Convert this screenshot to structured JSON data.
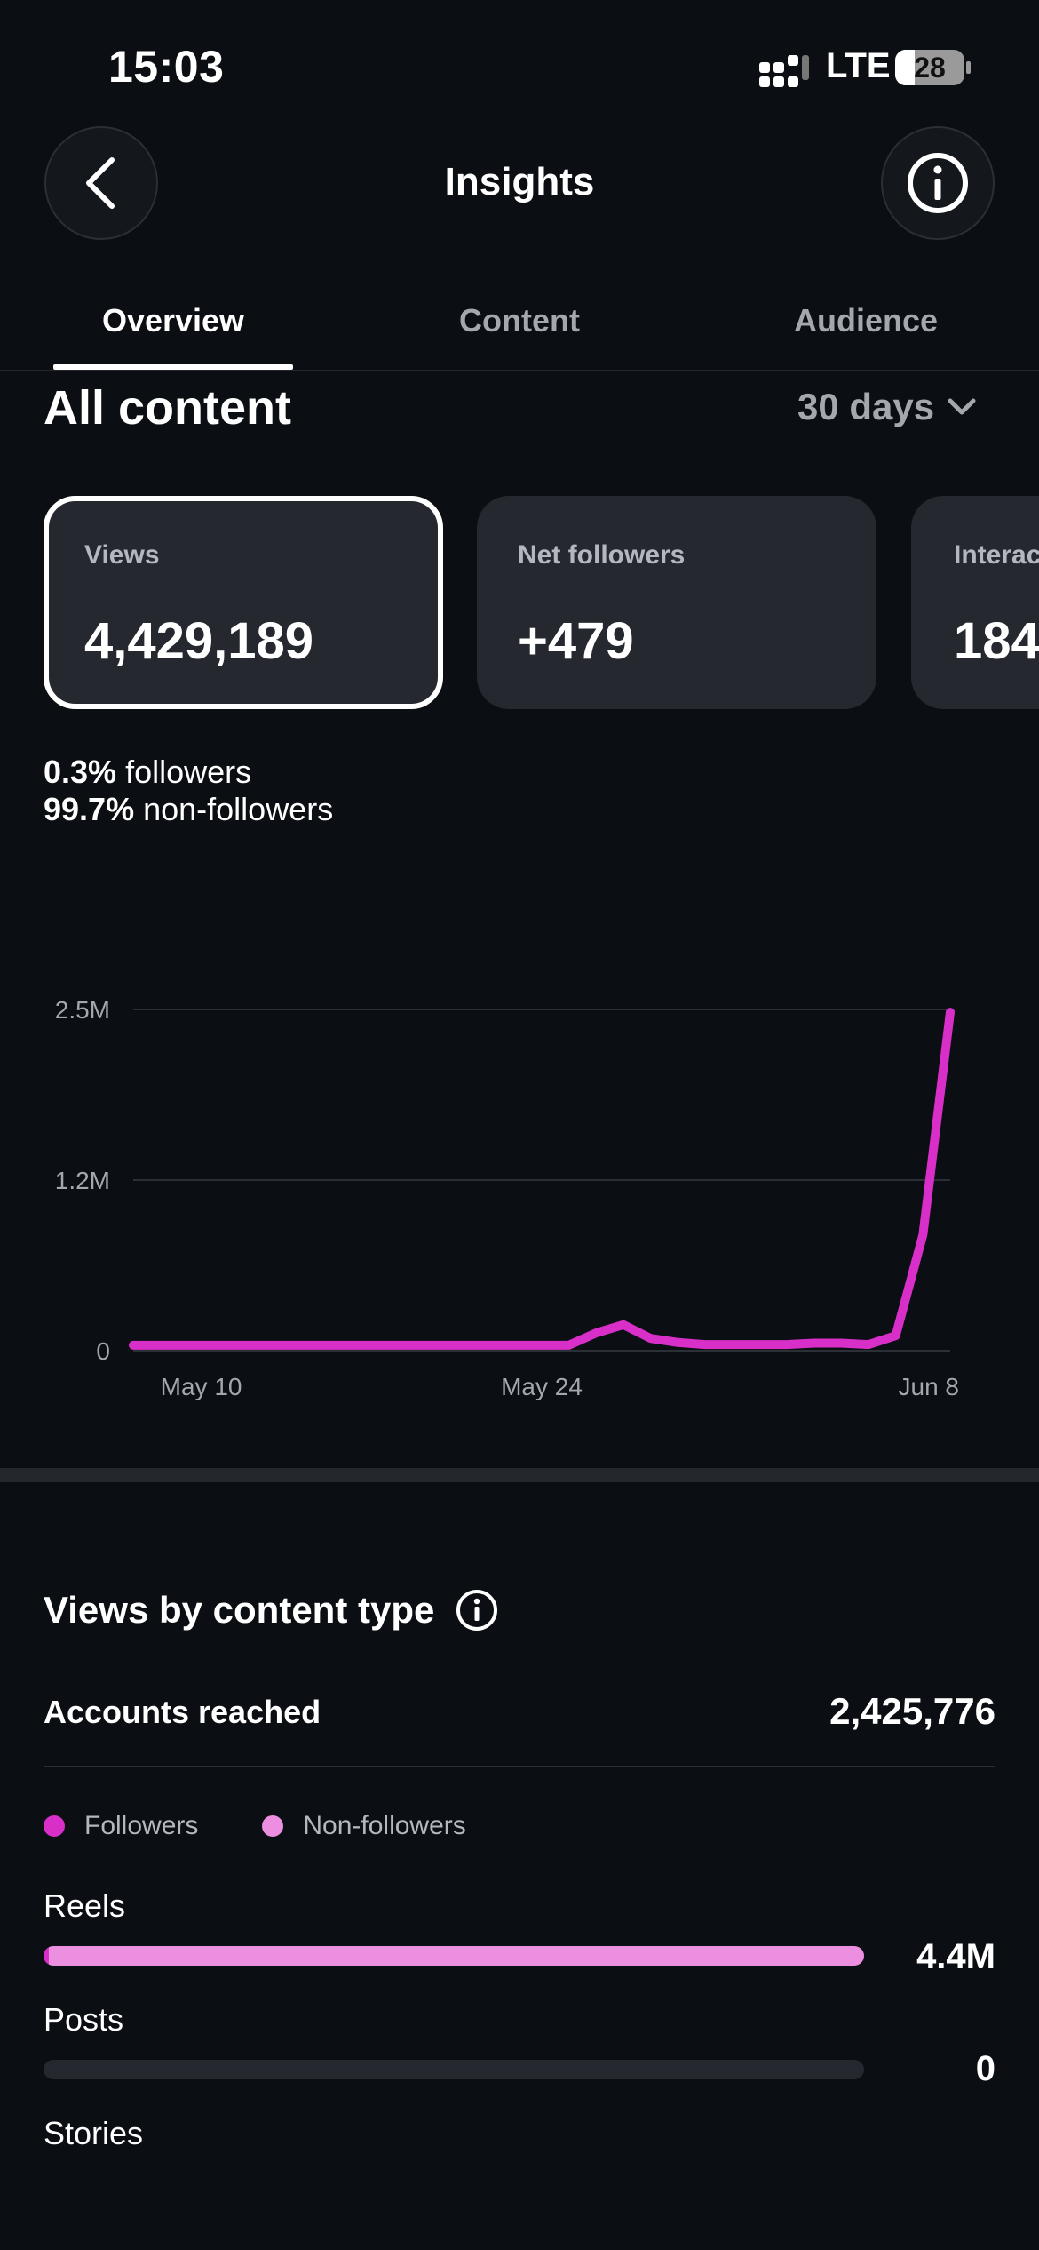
{
  "status_bar": {
    "time": "15:03",
    "network": "LTE",
    "battery": "28"
  },
  "header": {
    "title": "Insights",
    "back_icon": "chevron-left-icon",
    "info_icon": "info-icon"
  },
  "tabs": [
    {
      "label": "Overview",
      "active": true
    },
    {
      "label": "Content",
      "active": false
    },
    {
      "label": "Audience",
      "active": false
    }
  ],
  "section": {
    "title": "All content",
    "range": "30 days"
  },
  "cards": [
    {
      "label": "Views",
      "value": "4,429,189",
      "selected": true
    },
    {
      "label": "Net followers",
      "value": "+479",
      "selected": false
    },
    {
      "label": "Interac",
      "value": "184",
      "selected": false
    }
  ],
  "split": {
    "followers_pct": "0.3%",
    "followers_label": "followers",
    "non_followers_pct": "99.7%",
    "non_followers_label": "non-followers"
  },
  "chart_data": {
    "type": "line",
    "x_tick_labels": [
      "May 10",
      "May 24",
      "Jun 8"
    ],
    "y_tick_labels": [
      "2.5M",
      "1.2M",
      "0"
    ],
    "y_ticks": [
      2500000,
      1250000,
      0
    ],
    "ylim": [
      0,
      2500000
    ],
    "grid": true,
    "color": "#d82fc9",
    "series": [
      {
        "x": [
          "May 9",
          "May 10",
          "May 11",
          "May 12",
          "May 13",
          "May 14",
          "May 15",
          "May 16",
          "May 17",
          "May 18",
          "May 19",
          "May 20",
          "May 21",
          "May 22",
          "May 23",
          "May 24",
          "May 25",
          "May 26",
          "May 27",
          "May 28",
          "May 29",
          "May 30",
          "May 31",
          "Jun 1",
          "Jun 2",
          "Jun 3",
          "Jun 4",
          "Jun 5",
          "Jun 6",
          "Jun 7",
          "Jun 8"
        ],
        "values": [
          40000,
          40000,
          40000,
          40000,
          40000,
          40000,
          40000,
          40000,
          40000,
          40000,
          40000,
          40000,
          40000,
          40000,
          40000,
          40000,
          40000,
          130000,
          190000,
          90000,
          60000,
          45000,
          45000,
          45000,
          45000,
          55000,
          55000,
          45000,
          110000,
          850000,
          2480000
        ]
      }
    ]
  },
  "views_by_type": {
    "title": "Views by content type",
    "info_icon": "info-icon",
    "accounts_reached_label": "Accounts reached",
    "accounts_reached_value": "2,425,776",
    "legend": [
      {
        "label": "Followers",
        "color": "#d82fc9"
      },
      {
        "label": "Non-followers",
        "color": "#ec8fe0"
      }
    ],
    "rows": [
      {
        "label": "Reels",
        "value": "4.4M",
        "followers_fraction": 0.006,
        "non_followers_fraction": 0.994,
        "show_bar": true
      },
      {
        "label": "Posts",
        "value": "0",
        "followers_fraction": 0,
        "non_followers_fraction": 0,
        "show_bar": true
      },
      {
        "label": "Stories",
        "value": "",
        "followers_fraction": 0,
        "non_followers_fraction": 0,
        "show_bar": false
      }
    ]
  }
}
